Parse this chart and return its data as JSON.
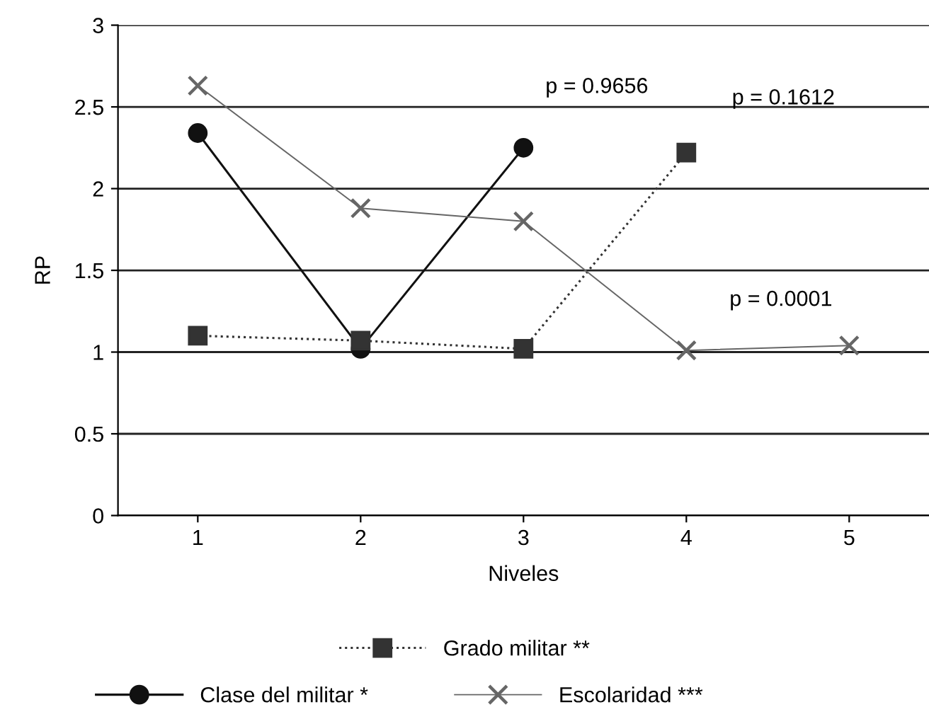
{
  "chart_data": {
    "type": "line",
    "xlabel": "Niveles",
    "ylabel": "RP",
    "categories": [
      "1",
      "2",
      "3",
      "4",
      "5"
    ],
    "series": [
      {
        "name": "Clase del militar *",
        "color": "#111111",
        "marker": "circle",
        "line_style": "solid",
        "values": [
          2.34,
          1.02,
          2.25,
          null,
          null
        ]
      },
      {
        "name": "Grado militar **",
        "color": "#333333",
        "marker": "square",
        "line_style": "dotted",
        "values": [
          1.1,
          1.07,
          1.02,
          2.22,
          null
        ]
      },
      {
        "name": "Escolaridad ***",
        "color": "#666666",
        "marker": "cross",
        "line_style": "solid",
        "values": [
          2.63,
          1.88,
          1.8,
          1.01,
          1.04
        ]
      }
    ],
    "annotations": [
      "p = 0.9656",
      "p = 0.1612",
      "p = 0.0001"
    ],
    "ylim": [
      0,
      3
    ],
    "yticks": [
      0,
      0.5,
      1,
      1.5,
      2,
      2.5,
      3
    ],
    "grid": "y",
    "legend": "bottom"
  }
}
